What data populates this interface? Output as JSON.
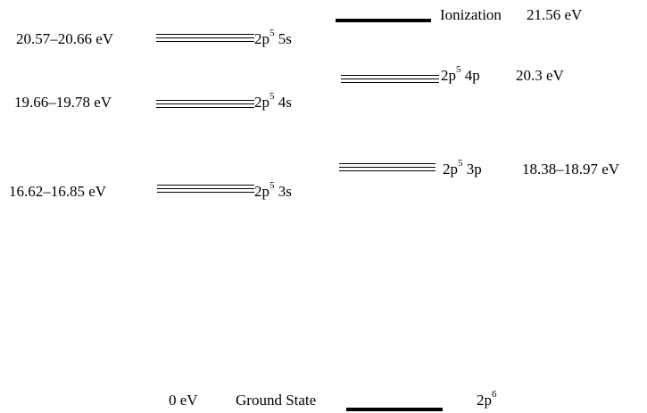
{
  "levels": {
    "s5": {
      "energy": "20.57–20.66 eV",
      "config_base": "2p",
      "config_exp": "5",
      "config_tail": " 5s"
    },
    "s4": {
      "energy": "19.66–19.78 eV",
      "config_base": "2p",
      "config_exp": "5",
      "config_tail": " 4s"
    },
    "s3": {
      "energy": "16.62–16.85 eV",
      "config_base": "2p",
      "config_exp": "5",
      "config_tail": " 3s"
    },
    "p4": {
      "energy": "20.3 eV",
      "config_base": "2p",
      "config_exp": "5",
      "config_tail": " 4p"
    },
    "p3": {
      "energy": "18.38–18.97 eV",
      "config_base": "2p",
      "config_exp": "5",
      "config_tail": " 3p"
    },
    "ionization": {
      "label": "Ionization",
      "energy": "21.56 eV"
    },
    "ground": {
      "energy": "0 eV",
      "label": "Ground State",
      "config_base": "2p",
      "config_exp": "6"
    }
  },
  "colors": {
    "lines": "#000000",
    "background": "#ffffff"
  }
}
